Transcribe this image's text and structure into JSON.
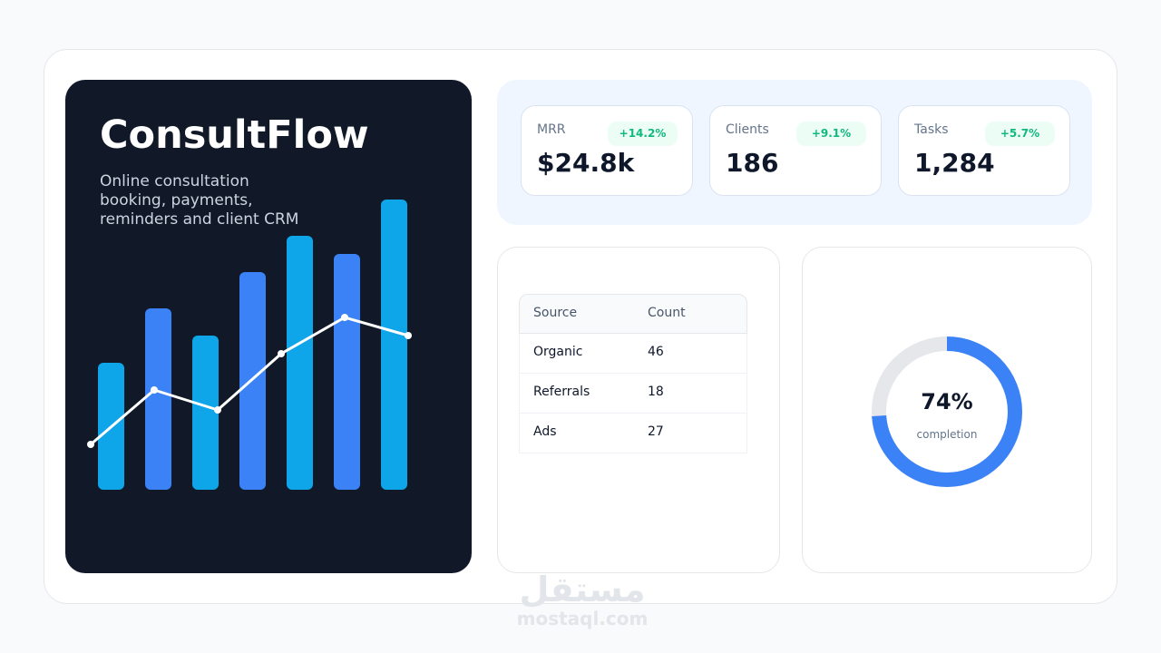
{
  "brand": {
    "title": "ConsultFlow",
    "subtitle": [
      "Online consultation",
      "booking, payments,",
      "reminders and client CRM"
    ]
  },
  "kpis": [
    {
      "label": "MRR",
      "value": "$24.8k",
      "delta": "+14.2%"
    },
    {
      "label": "Clients",
      "value": "186",
      "delta": "+9.1%"
    },
    {
      "label": "Tasks",
      "value": "1,284",
      "delta": "+5.7%"
    }
  ],
  "table": {
    "header": [
      "Source",
      "Count"
    ],
    "rows": [
      [
        "Organic",
        "46"
      ],
      [
        "Referrals",
        "18"
      ],
      [
        "Ads",
        "27"
      ]
    ]
  },
  "donut": {
    "value": 74,
    "value_label": "74%",
    "caption": "completion",
    "color": "#3b82f6",
    "track_color": "#e5e7eb"
  },
  "watermark": {
    "logo": "مستقل",
    "site": "mostaql.com"
  }
}
